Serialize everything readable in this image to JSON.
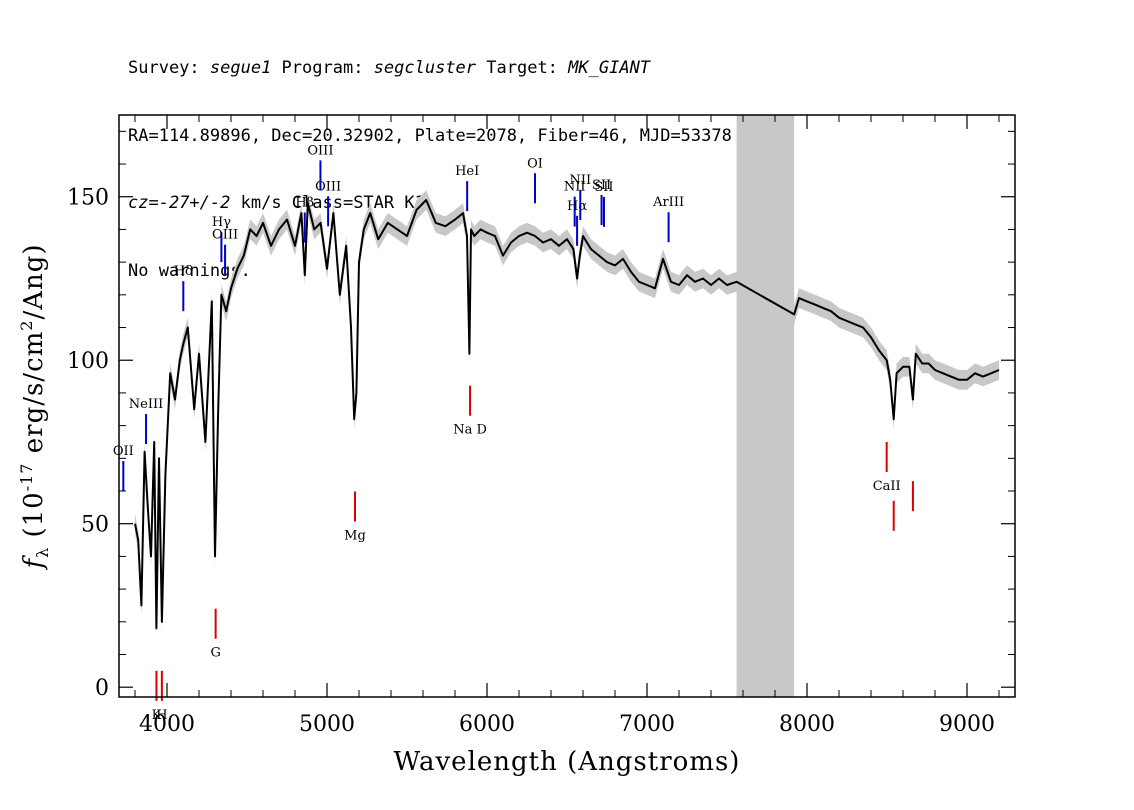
{
  "header": {
    "line1": {
      "survey_label": "Survey: ",
      "survey": "segue1",
      "program_label": " Program: ",
      "program": "segcluster",
      "target_label": " Target: ",
      "target": "MK_GIANT"
    },
    "line2": "RA=114.89896, Dec=20.32902, Plate=2078, Fiber=46, MJD=53378",
    "line3": {
      "cz_var": "cz",
      "cz_value": "=-27+/-2",
      "cz_rest": " km/s Class=STAR K1"
    },
    "line4": "No warnings."
  },
  "chart_data": {
    "type": "line",
    "xlabel": "Wavelength (Angstroms)",
    "ylabel": "f_λ (10^-17 erg/s/cm^2/Ang)",
    "xlim": [
      3700,
      9300
    ],
    "ylim": [
      -3,
      175
    ],
    "x_ticks": [
      4000,
      5000,
      6000,
      7000,
      8000,
      9000
    ],
    "y_ticks": [
      0,
      50,
      100,
      150
    ],
    "grid": false,
    "masked_region": [
      7560,
      7920
    ],
    "colors": {
      "spectrum": "#000000",
      "error_band": "#c8c8c8",
      "mask": "#c8c8c8",
      "emission": "#0000cc",
      "absorption": "#dd0000"
    },
    "series": [
      {
        "x": [
          3800,
          3820,
          3840,
          3860,
          3880,
          3900,
          3920,
          3934,
          3950,
          3968,
          3990,
          4020,
          4050,
          4080,
          4102,
          4130,
          4170,
          4200,
          4240,
          4280,
          4300,
          4320,
          4340,
          4370,
          4400,
          4440,
          4480,
          4520,
          4560,
          4600,
          4650,
          4700,
          4750,
          4800,
          4840,
          4861,
          4880,
          4920,
          4960,
          5000,
          5040,
          5080,
          5120,
          5150,
          5170,
          5184,
          5200,
          5230,
          5270,
          5320,
          5380,
          5440,
          5500,
          5560,
          5620,
          5680,
          5740,
          5800,
          5850,
          5875,
          5890,
          5900,
          5920,
          5960,
          6000,
          6050,
          6100,
          6150,
          6200,
          6250,
          6300,
          6350,
          6400,
          6450,
          6500,
          6540,
          6563,
          6580,
          6600,
          6650,
          6700,
          6750,
          6800,
          6850,
          6900,
          6950,
          7000,
          7050,
          7100,
          7150,
          7200,
          7250,
          7300,
          7350,
          7400,
          7450,
          7500,
          7560,
          7920,
          7950,
          8000,
          8050,
          8100,
          8150,
          8200,
          8250,
          8300,
          8350,
          8400,
          8450,
          8498,
          8520,
          8542,
          8560,
          8600,
          8640,
          8662,
          8680,
          8720,
          8760,
          8800,
          8850,
          8900,
          8950,
          9000,
          9050,
          9100,
          9150,
          9200
        ],
        "values": [
          50,
          45,
          25,
          72,
          55,
          40,
          75,
          18,
          70,
          20,
          65,
          96,
          88,
          100,
          105,
          110,
          85,
          102,
          75,
          118,
          40,
          85,
          120,
          115,
          122,
          128,
          132,
          140,
          138,
          142,
          135,
          140,
          143,
          135,
          145,
          126,
          148,
          140,
          142,
          128,
          145,
          120,
          135,
          110,
          82,
          90,
          130,
          140,
          145,
          137,
          142,
          140,
          138,
          146,
          149,
          142,
          141,
          143,
          145,
          138,
          102,
          140,
          138,
          140,
          139,
          138,
          132,
          136,
          138,
          139,
          138,
          136,
          137,
          135,
          137,
          134,
          125,
          132,
          138,
          134,
          132,
          130,
          129,
          131,
          127,
          124,
          123,
          122,
          131,
          124,
          123,
          126,
          124,
          125,
          123,
          125,
          123,
          124,
          114,
          119,
          118,
          117,
          116,
          115,
          113,
          112,
          111,
          110,
          107,
          103,
          100,
          94,
          82,
          96,
          98,
          98,
          88,
          102,
          99,
          99,
          97,
          96,
          95,
          94,
          94,
          96,
          95,
          96,
          97
        ]
      }
    ],
    "emission_lines": [
      {
        "label": "OII",
        "x": 3727
      },
      {
        "label": "NeIII",
        "x": 3869
      },
      {
        "label": "Hδ",
        "x": 4102
      },
      {
        "label": "Hγ",
        "x": 4340
      },
      {
        "label": "OIII",
        "x": 4363
      },
      {
        "label": "Hβ",
        "x": 4861
      },
      {
        "label": "OIII",
        "x": 4959
      },
      {
        "label": "OIII",
        "x": 5007
      },
      {
        "label": "HeI",
        "x": 5876
      },
      {
        "label": "OI",
        "x": 6300
      },
      {
        "label": "NII",
        "x": 6548
      },
      {
        "label": "Hα",
        "x": 6563
      },
      {
        "label": "NII",
        "x": 6583
      },
      {
        "label": "SII",
        "x": 6716
      },
      {
        "label": "SII",
        "x": 6731
      },
      {
        "label": "ArIII",
        "x": 7135
      }
    ],
    "absorption_lines": [
      {
        "label": "K",
        "x": 3934
      },
      {
        "label": "H",
        "x": 3968
      },
      {
        "label": "G",
        "x": 4304
      },
      {
        "label": "Mg",
        "x": 5175
      },
      {
        "label": "Na D",
        "x": 5894
      },
      {
        "label": "CaII",
        "x": 8498
      },
      {
        "label": "CaII",
        "x": 8542
      },
      {
        "label": "CaII",
        "x": 8662
      }
    ]
  }
}
